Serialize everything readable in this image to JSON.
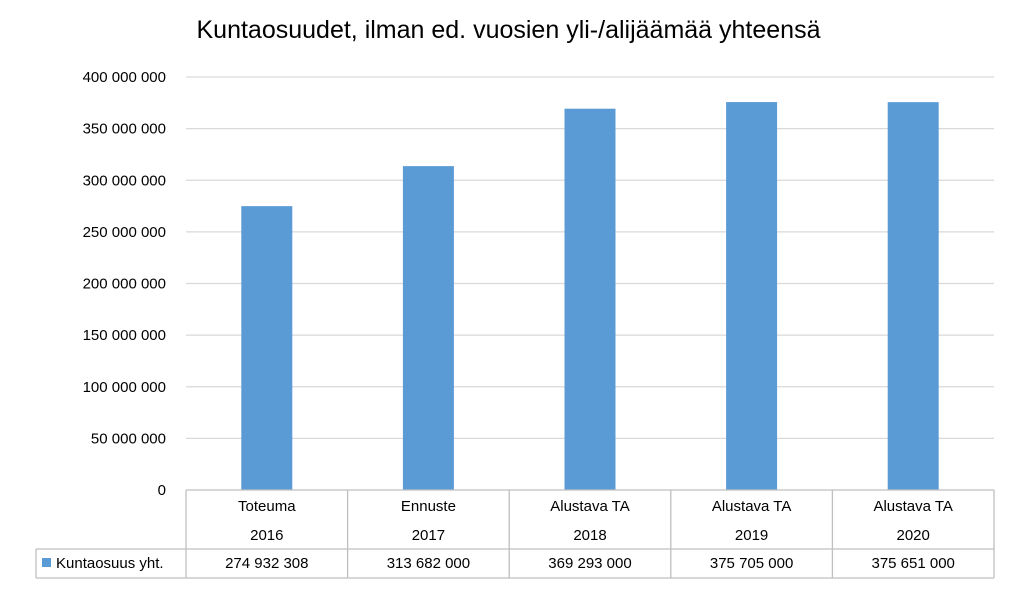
{
  "chart_data": {
    "type": "bar",
    "title": "Kuntaosuudet, ilman ed. vuosien yli-/alijäämää yhteensä",
    "categories": [
      {
        "line1": "Toteuma",
        "line2": "2016"
      },
      {
        "line1": "Ennuste",
        "line2": "2017"
      },
      {
        "line1": "Alustava TA",
        "line2": "2018"
      },
      {
        "line1": "Alustava TA",
        "line2": "2019"
      },
      {
        "line1": "Alustava TA",
        "line2": "2020"
      }
    ],
    "series": [
      {
        "name": "Kuntaosuus yht.",
        "color": "#5b9bd5",
        "values": [
          274932308,
          313682000,
          369293000,
          375705000,
          375651000
        ],
        "value_labels": [
          "274 932 308",
          "313 682 000",
          "369 293 000",
          "375 705 000",
          "375 651 000"
        ]
      }
    ],
    "ylim": [
      0,
      400000000
    ],
    "yticks": [
      0,
      50000000,
      100000000,
      150000000,
      200000000,
      250000000,
      300000000,
      350000000,
      400000000
    ],
    "ytick_labels": [
      "0",
      "50 000 000",
      "100 000 000",
      "150 000 000",
      "200 000 000",
      "250 000 000",
      "300 000 000",
      "350 000 000",
      "400 000 000"
    ],
    "grid": true,
    "legend": "data-table",
    "gridline_color": "#d9d9d9",
    "table_border_color": "#bfbfbf"
  }
}
